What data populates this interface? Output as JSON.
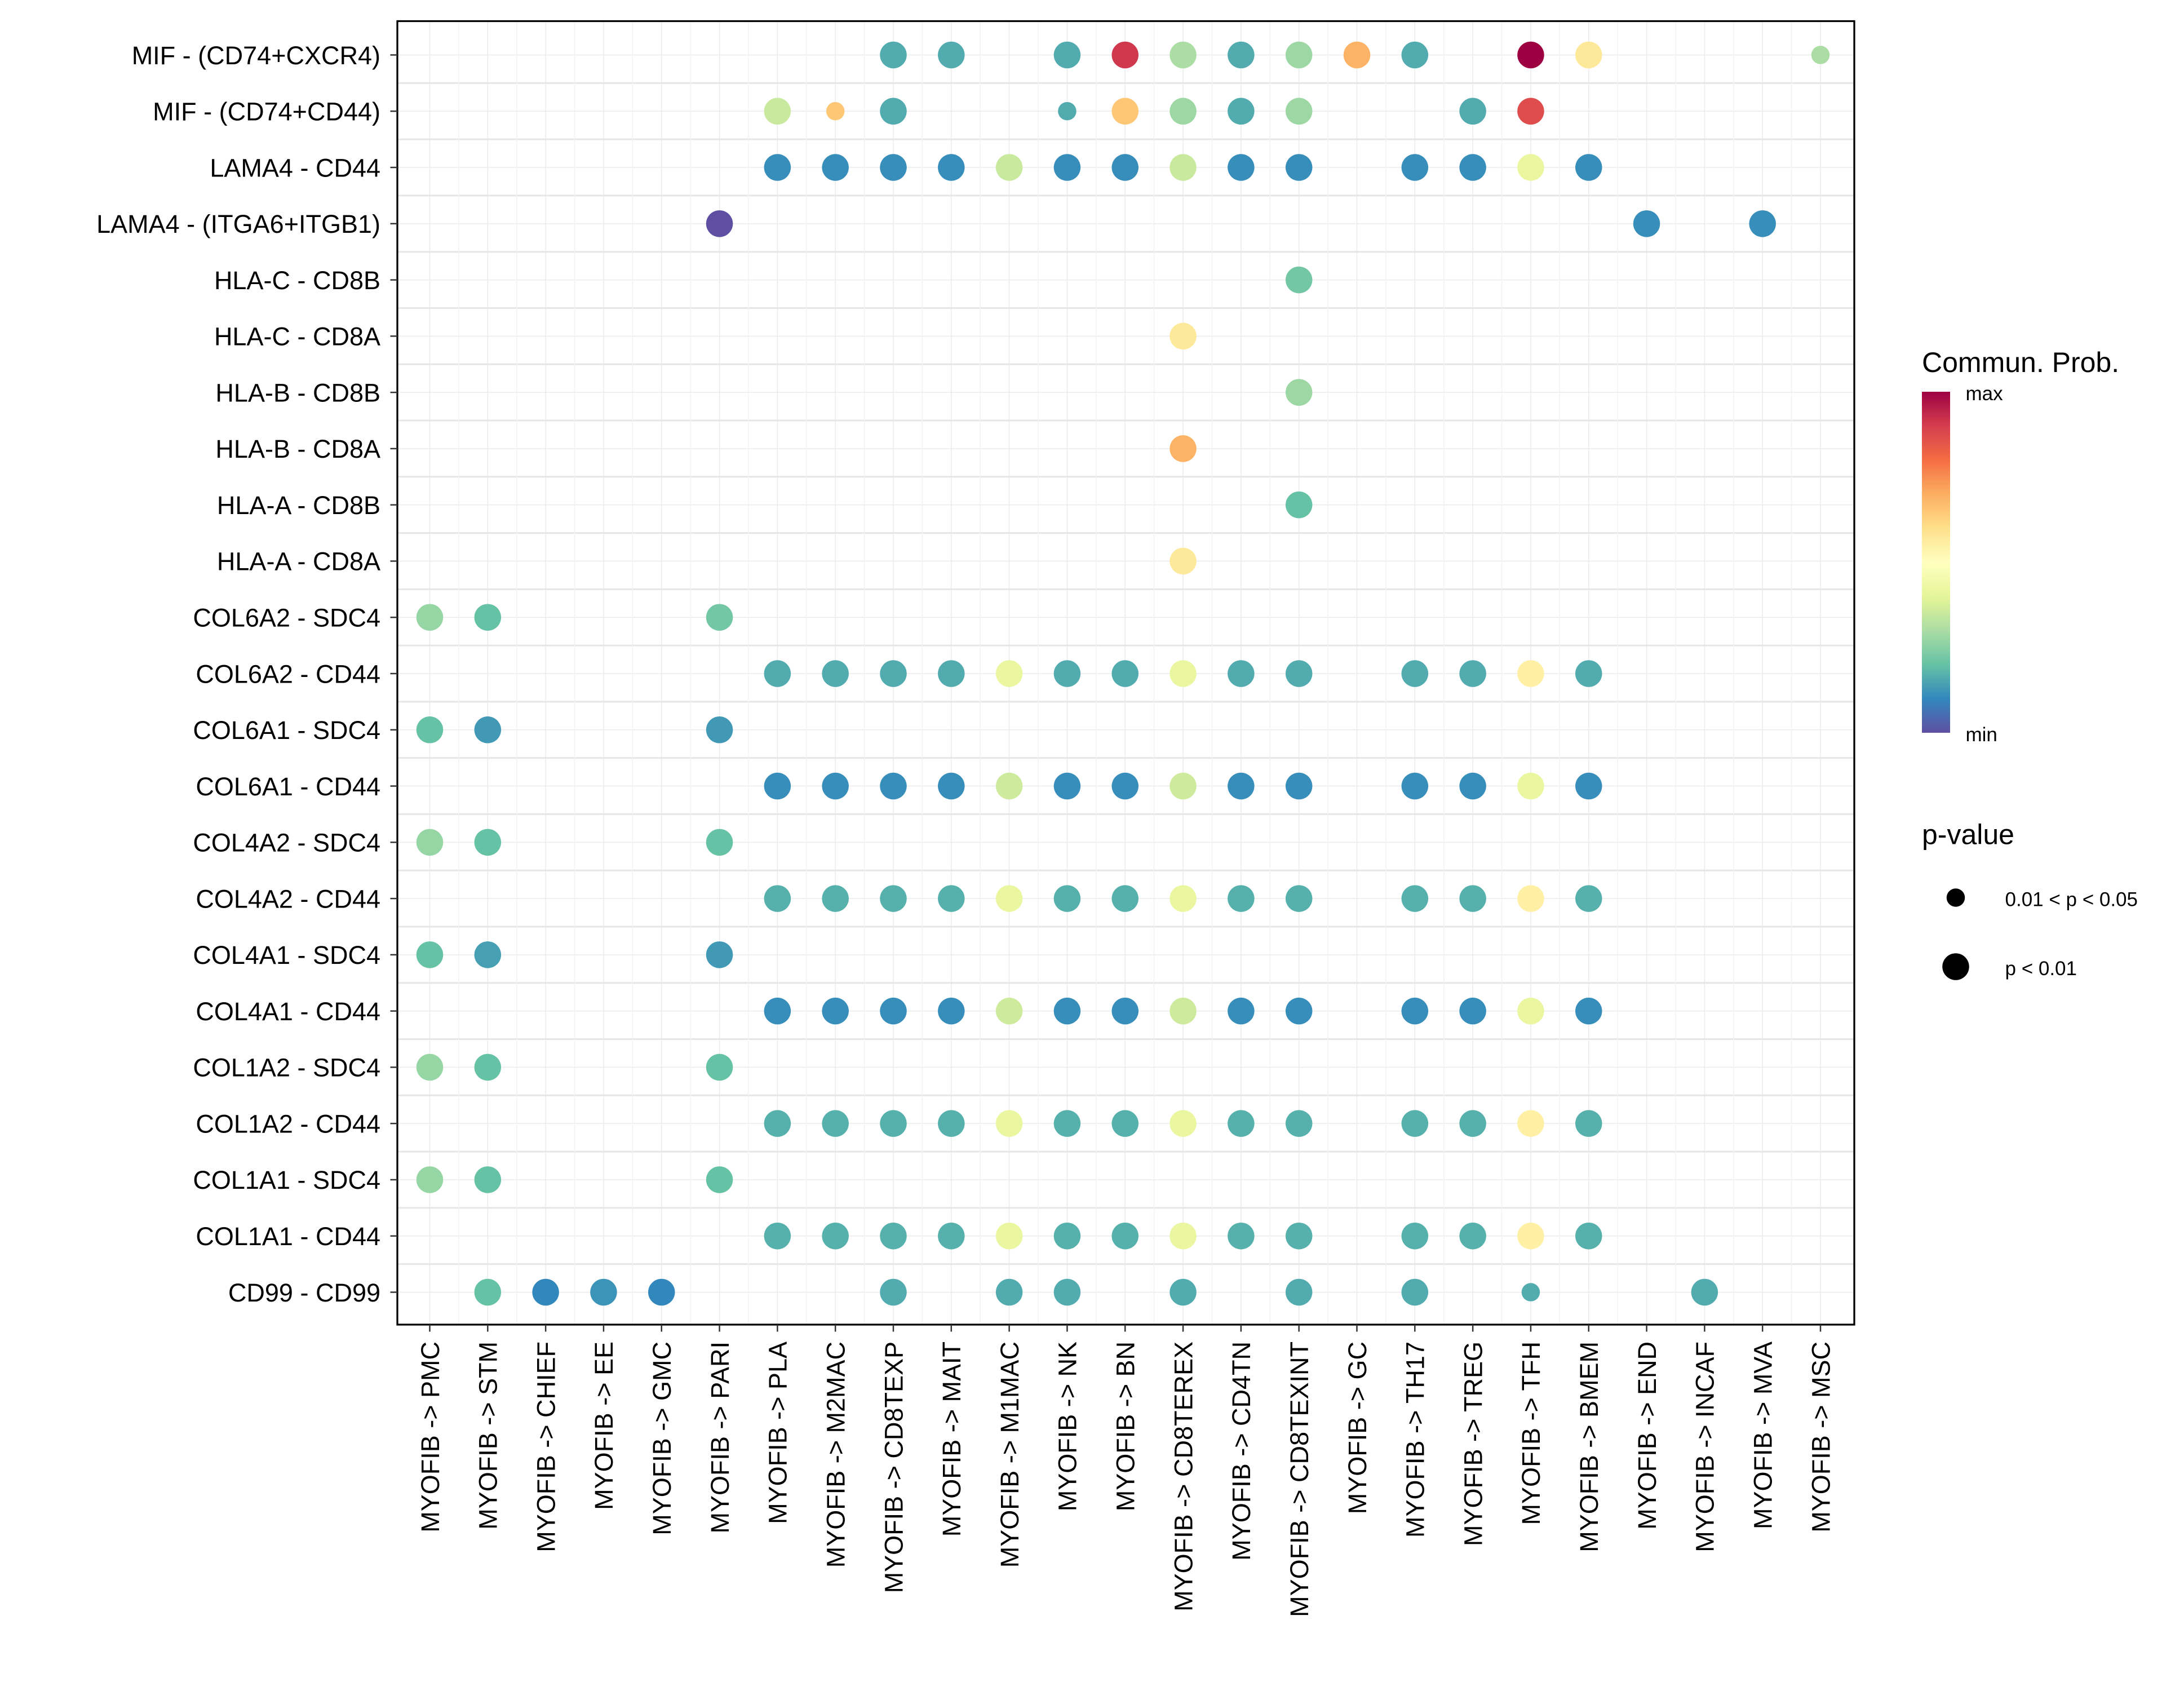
{
  "chart_data": {
    "type": "scatter",
    "subtype": "bubble/dot plot",
    "x_categories": [
      "MYOFIB -> PMC",
      "MYOFIB -> STM",
      "MYOFIB -> CHIEF",
      "MYOFIB -> EE",
      "MYOFIB -> GMC",
      "MYOFIB -> PARI",
      "MYOFIB -> PLA",
      "MYOFIB -> M2MAC",
      "MYOFIB -> CD8TEXP",
      "MYOFIB -> MAIT",
      "MYOFIB -> M1MAC",
      "MYOFIB -> NK",
      "MYOFIB -> BN",
      "MYOFIB -> CD8TEREX",
      "MYOFIB -> CD4TN",
      "MYOFIB -> CD8TEXINT",
      "MYOFIB -> GC",
      "MYOFIB -> TH17",
      "MYOFIB -> TREG",
      "MYOFIB -> TFH",
      "MYOFIB -> BMEM",
      "MYOFIB -> END",
      "MYOFIB -> INCAF",
      "MYOFIB -> MVA",
      "MYOFIB -> MSC"
    ],
    "y_categories_top_to_bottom": [
      "MIF - (CD74+CXCR4)",
      "MIF - (CD74+CD44)",
      "LAMA4 - CD44",
      "LAMA4 - (ITGA6+ITGB1)",
      "HLA-C - CD8B",
      "HLA-C - CD8A",
      "HLA-B - CD8B",
      "HLA-B - CD8A",
      "HLA-A - CD8B",
      "HLA-A - CD8A",
      "COL6A2 - SDC4",
      "COL6A2 - CD44",
      "COL6A1 - SDC4",
      "COL6A1 - CD44",
      "COL4A2 - SDC4",
      "COL4A2 - CD44",
      "COL4A1 - SDC4",
      "COL4A1 - CD44",
      "COL1A2 - SDC4",
      "COL1A2 - CD44",
      "COL1A1 - SDC4",
      "COL1A1 - CD44",
      "CD99 - CD99"
    ],
    "value_scale": "relative commun. prob, 0 = min, 1 = max",
    "points_note": "each point: [x category index, relative prob 0-1, significance 1 = p < 0.01, 0 = 0.01 < p < 0.05]",
    "points_by_row": [
      [
        [
          8,
          0.16,
          1
        ],
        [
          9,
          0.16,
          1
        ],
        [
          11,
          0.16,
          1
        ],
        [
          12,
          0.91,
          1
        ],
        [
          13,
          0.3,
          1
        ],
        [
          14,
          0.16,
          1
        ],
        [
          15,
          0.28,
          1
        ],
        [
          16,
          0.69,
          1
        ],
        [
          17,
          0.16,
          1
        ],
        [
          19,
          1.0,
          1
        ],
        [
          20,
          0.57,
          1
        ],
        [
          24,
          0.3,
          0
        ]
      ],
      [
        [
          6,
          0.35,
          1
        ],
        [
          7,
          0.65,
          0
        ],
        [
          8,
          0.16,
          1
        ],
        [
          11,
          0.16,
          0
        ],
        [
          12,
          0.65,
          1
        ],
        [
          13,
          0.28,
          1
        ],
        [
          14,
          0.16,
          1
        ],
        [
          15,
          0.28,
          1
        ],
        [
          18,
          0.16,
          1
        ],
        [
          19,
          0.87,
          1
        ]
      ],
      [
        [
          6,
          0.11,
          1
        ],
        [
          7,
          0.11,
          1
        ],
        [
          8,
          0.11,
          1
        ],
        [
          9,
          0.11,
          1
        ],
        [
          10,
          0.35,
          1
        ],
        [
          11,
          0.11,
          1
        ],
        [
          12,
          0.11,
          1
        ],
        [
          13,
          0.35,
          1
        ],
        [
          14,
          0.11,
          1
        ],
        [
          15,
          0.11,
          1
        ],
        [
          17,
          0.11,
          1
        ],
        [
          18,
          0.11,
          1
        ],
        [
          19,
          0.42,
          1
        ],
        [
          20,
          0.11,
          1
        ]
      ],
      [
        [
          5,
          0.0,
          1
        ],
        [
          21,
          0.11,
          1
        ],
        [
          23,
          0.11,
          1
        ]
      ],
      [
        [
          15,
          0.22,
          1
        ]
      ],
      [
        [
          13,
          0.57,
          1
        ]
      ],
      [
        [
          15,
          0.28,
          1
        ]
      ],
      [
        [
          13,
          0.69,
          1
        ]
      ],
      [
        [
          15,
          0.2,
          1
        ]
      ],
      [
        [
          13,
          0.57,
          1
        ]
      ],
      [
        [
          0,
          0.27,
          1
        ],
        [
          1,
          0.2,
          1
        ],
        [
          5,
          0.22,
          1
        ]
      ],
      [
        [
          6,
          0.16,
          1
        ],
        [
          7,
          0.16,
          1
        ],
        [
          8,
          0.16,
          1
        ],
        [
          9,
          0.16,
          1
        ],
        [
          10,
          0.42,
          1
        ],
        [
          11,
          0.16,
          1
        ],
        [
          12,
          0.16,
          1
        ],
        [
          13,
          0.42,
          1
        ],
        [
          14,
          0.16,
          1
        ],
        [
          15,
          0.16,
          1
        ],
        [
          17,
          0.16,
          1
        ],
        [
          18,
          0.16,
          1
        ],
        [
          19,
          0.55,
          1
        ],
        [
          20,
          0.16,
          1
        ]
      ],
      [
        [
          0,
          0.2,
          1
        ],
        [
          1,
          0.13,
          1
        ],
        [
          5,
          0.13,
          1
        ]
      ],
      [
        [
          6,
          0.11,
          1
        ],
        [
          7,
          0.11,
          1
        ],
        [
          8,
          0.11,
          1
        ],
        [
          9,
          0.11,
          1
        ],
        [
          10,
          0.36,
          1
        ],
        [
          11,
          0.11,
          1
        ],
        [
          12,
          0.11,
          1
        ],
        [
          13,
          0.36,
          1
        ],
        [
          14,
          0.11,
          1
        ],
        [
          15,
          0.11,
          1
        ],
        [
          17,
          0.11,
          1
        ],
        [
          18,
          0.11,
          1
        ],
        [
          19,
          0.42,
          1
        ],
        [
          20,
          0.11,
          1
        ]
      ],
      [
        [
          0,
          0.27,
          1
        ],
        [
          1,
          0.2,
          1
        ],
        [
          5,
          0.2,
          1
        ]
      ],
      [
        [
          6,
          0.17,
          1
        ],
        [
          7,
          0.17,
          1
        ],
        [
          8,
          0.17,
          1
        ],
        [
          9,
          0.17,
          1
        ],
        [
          10,
          0.42,
          1
        ],
        [
          11,
          0.17,
          1
        ],
        [
          12,
          0.17,
          1
        ],
        [
          13,
          0.42,
          1
        ],
        [
          14,
          0.17,
          1
        ],
        [
          15,
          0.17,
          1
        ],
        [
          17,
          0.17,
          1
        ],
        [
          18,
          0.17,
          1
        ],
        [
          19,
          0.55,
          1
        ],
        [
          20,
          0.17,
          1
        ]
      ],
      [
        [
          0,
          0.2,
          1
        ],
        [
          1,
          0.14,
          1
        ],
        [
          5,
          0.13,
          1
        ]
      ],
      [
        [
          6,
          0.11,
          1
        ],
        [
          7,
          0.11,
          1
        ],
        [
          8,
          0.11,
          1
        ],
        [
          9,
          0.11,
          1
        ],
        [
          10,
          0.36,
          1
        ],
        [
          11,
          0.11,
          1
        ],
        [
          12,
          0.11,
          1
        ],
        [
          13,
          0.36,
          1
        ],
        [
          14,
          0.11,
          1
        ],
        [
          15,
          0.11,
          1
        ],
        [
          17,
          0.11,
          1
        ],
        [
          18,
          0.11,
          1
        ],
        [
          19,
          0.42,
          1
        ],
        [
          20,
          0.11,
          1
        ]
      ],
      [
        [
          0,
          0.27,
          1
        ],
        [
          1,
          0.2,
          1
        ],
        [
          5,
          0.2,
          1
        ]
      ],
      [
        [
          6,
          0.17,
          1
        ],
        [
          7,
          0.17,
          1
        ],
        [
          8,
          0.17,
          1
        ],
        [
          9,
          0.17,
          1
        ],
        [
          10,
          0.42,
          1
        ],
        [
          11,
          0.17,
          1
        ],
        [
          12,
          0.17,
          1
        ],
        [
          13,
          0.42,
          1
        ],
        [
          14,
          0.17,
          1
        ],
        [
          15,
          0.17,
          1
        ],
        [
          17,
          0.17,
          1
        ],
        [
          18,
          0.17,
          1
        ],
        [
          19,
          0.55,
          1
        ],
        [
          20,
          0.17,
          1
        ]
      ],
      [
        [
          0,
          0.27,
          1
        ],
        [
          1,
          0.2,
          1
        ],
        [
          5,
          0.2,
          1
        ]
      ],
      [
        [
          6,
          0.17,
          1
        ],
        [
          7,
          0.17,
          1
        ],
        [
          8,
          0.17,
          1
        ],
        [
          9,
          0.17,
          1
        ],
        [
          10,
          0.42,
          1
        ],
        [
          11,
          0.17,
          1
        ],
        [
          12,
          0.17,
          1
        ],
        [
          13,
          0.42,
          1
        ],
        [
          14,
          0.17,
          1
        ],
        [
          15,
          0.17,
          1
        ],
        [
          17,
          0.17,
          1
        ],
        [
          18,
          0.17,
          1
        ],
        [
          19,
          0.55,
          1
        ],
        [
          20,
          0.17,
          1
        ]
      ],
      [
        [
          1,
          0.2,
          1
        ],
        [
          2,
          0.1,
          1
        ],
        [
          3,
          0.12,
          1
        ],
        [
          4,
          0.1,
          1
        ],
        [
          8,
          0.16,
          1
        ],
        [
          10,
          0.16,
          1
        ],
        [
          11,
          0.16,
          1
        ],
        [
          13,
          0.16,
          1
        ],
        [
          15,
          0.16,
          1
        ],
        [
          17,
          0.16,
          1
        ],
        [
          19,
          0.16,
          0
        ],
        [
          22,
          0.16,
          1
        ]
      ]
    ],
    "grid": true,
    "legend": {
      "placement": "right",
      "color_title": "Commun. Prob.",
      "color_max_label": "max",
      "color_min_label": "min",
      "palette": [
        "#5e4fa2",
        "#3288bd",
        "#66c2a5",
        "#abdda4",
        "#e6f598",
        "#ffffbf",
        "#fee08b",
        "#fdae61",
        "#f46d43",
        "#d53e4f",
        "#9e0142"
      ],
      "size_title": "p-value",
      "size_labels": [
        "0.01 < p < 0.05",
        "p < 0.01"
      ]
    }
  }
}
